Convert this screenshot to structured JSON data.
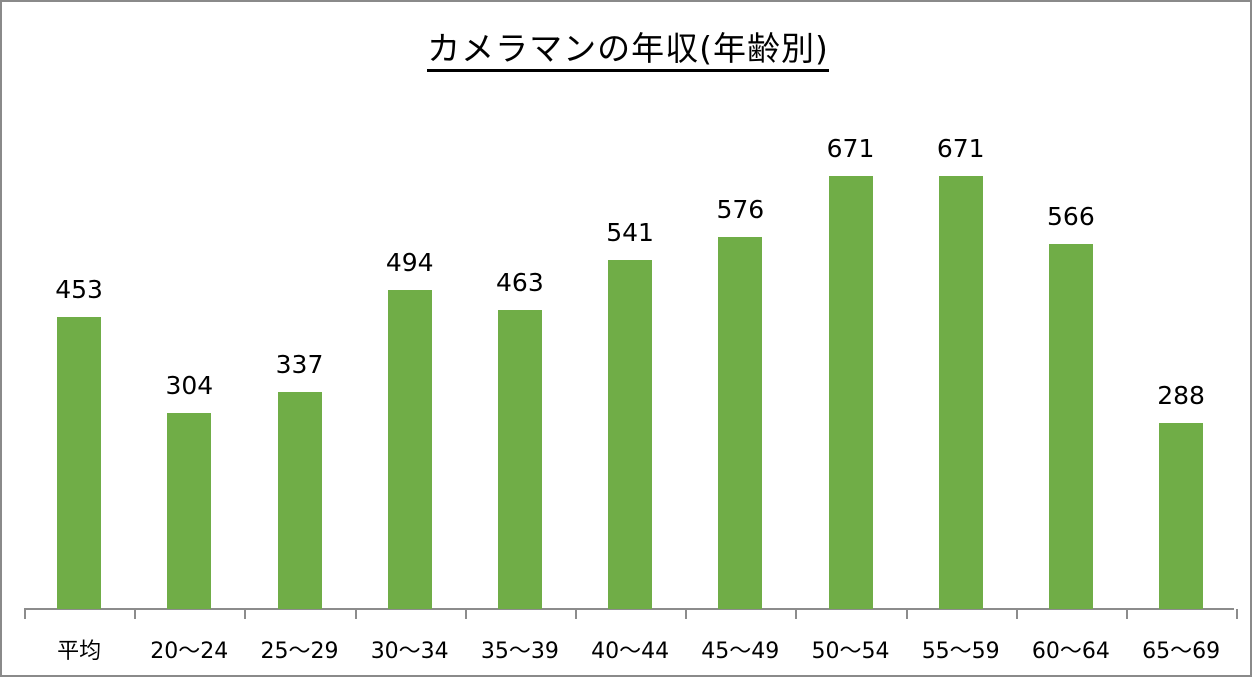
{
  "title": "カメラマンの年収(年齢別)",
  "colors": {
    "bar": "#70ad47",
    "axis": "#8c8c8c",
    "frame": "#8a8a8a"
  },
  "chart_data": {
    "type": "bar",
    "title": "カメラマンの年収(年齢別)",
    "xlabel": "",
    "ylabel": "",
    "categories": [
      "平均",
      "20〜24",
      "25〜29",
      "30〜34",
      "35〜39",
      "40〜44",
      "45〜49",
      "50〜54",
      "55〜59",
      "60〜64",
      "65〜69"
    ],
    "values": [
      453,
      304,
      337,
      494,
      463,
      541,
      576,
      671,
      671,
      566,
      288
    ],
    "data_labels": true,
    "grid": false,
    "legend": null,
    "ylim": [
      0,
      700
    ]
  },
  "labels": {
    "values": [
      "453",
      "304",
      "337",
      "494",
      "463",
      "541",
      "576",
      "671",
      "671",
      "566",
      "288"
    ],
    "categories": [
      "平均",
      "20〜24",
      "25〜29",
      "30〜34",
      "35〜39",
      "40〜44",
      "45〜49",
      "50〜54",
      "55〜59",
      "60〜64",
      "65〜69"
    ]
  }
}
